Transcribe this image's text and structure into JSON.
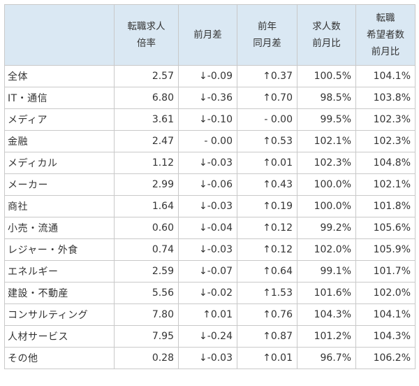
{
  "table": {
    "headers": [
      [
        ""
      ],
      [
        "転職求人",
        "倍率"
      ],
      [
        "前月差"
      ],
      [
        "前年",
        "同月差"
      ],
      [
        "求人数",
        "前月比"
      ],
      [
        "転職",
        "希望者数",
        "前月比"
      ]
    ],
    "rows": [
      [
        "全体",
        "2.57",
        "↓-0.09",
        "↑0.37",
        "100.5%",
        "104.1%"
      ],
      [
        "IT・通信",
        "6.80",
        "↓-0.36",
        "↑0.70",
        "98.5%",
        "103.8%"
      ],
      [
        "メディア",
        "3.61",
        "↓-0.10",
        "- 0.00",
        "99.5%",
        "102.3%"
      ],
      [
        "金融",
        "2.47",
        "- 0.00",
        "↑0.53",
        "102.1%",
        "102.3%"
      ],
      [
        "メディカル",
        "1.12",
        "↓-0.03",
        "↑0.01",
        "102.3%",
        "104.8%"
      ],
      [
        "メーカー",
        "2.99",
        "↓-0.06",
        "↑0.43",
        "100.0%",
        "102.1%"
      ],
      [
        "商社",
        "1.64",
        "↓-0.03",
        "↑0.19",
        "100.0%",
        "101.8%"
      ],
      [
        "小売・流通",
        "0.60",
        "↓-0.04",
        "↑0.12",
        "99.2%",
        "105.6%"
      ],
      [
        "レジャー・外食",
        "0.74",
        "↓-0.03",
        "↑0.12",
        "102.0%",
        "105.9%"
      ],
      [
        "エネルギー",
        "2.59",
        "↓-0.07",
        "↑0.64",
        "99.1%",
        "101.7%"
      ],
      [
        "建設・不動産",
        "5.56",
        "↓-0.02",
        "↑1.53",
        "101.6%",
        "102.0%"
      ],
      [
        "コンサルティング",
        "7.80",
        "↑0.01",
        "↑0.76",
        "104.3%",
        "104.1%"
      ],
      [
        "人材サービス",
        "7.95",
        "↓-0.24",
        "↑0.87",
        "101.2%",
        "104.3%"
      ],
      [
        "その他",
        "0.28",
        "↓-0.03",
        "↑0.01",
        "96.7%",
        "106.2%"
      ]
    ]
  },
  "colors": {
    "header_bg": "#dae8f3",
    "border": "#c9c9c9",
    "text": "#333333"
  }
}
